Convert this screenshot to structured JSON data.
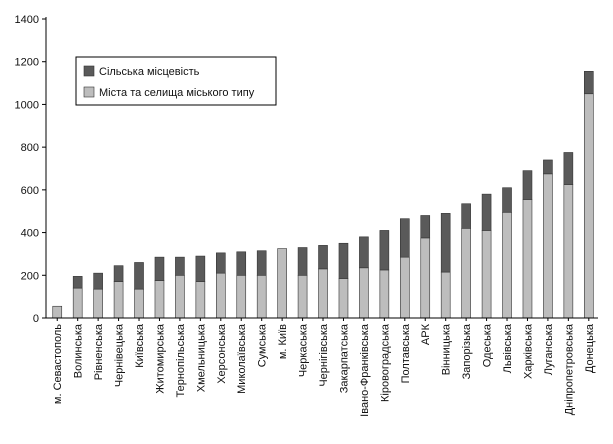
{
  "chart_data": {
    "type": "bar",
    "stacked": true,
    "title": "",
    "xlabel": "",
    "ylabel": "",
    "ylim": [
      0,
      1400
    ],
    "yticks": [
      0,
      200,
      400,
      600,
      800,
      1000,
      1200,
      1400
    ],
    "grid": false,
    "legend_position": "top-left",
    "categories": [
      "м. Севастополь",
      "Волинська",
      "Рівненська",
      "Чернівецька",
      "Київська",
      "Житомирська",
      "Тернопільська",
      "Хмельницька",
      "Херсонська",
      "Миколаївська",
      "Сумська",
      "м. Київ",
      "Черкаська",
      "Чернігівська",
      "Закарпатська",
      "Івано-Франківська",
      "Кіровоградська",
      "Полтавська",
      "АРК",
      "Вінницька",
      "Запорізька",
      "Одеська",
      "Львівська",
      "Харківська",
      "Луганська",
      "Дніпропетровська",
      "Донецька"
    ],
    "series": [
      {
        "name": "Міста та селища міського типу",
        "color": "#bdbdbd",
        "values": [
          55,
          140,
          135,
          170,
          135,
          175,
          200,
          170,
          210,
          200,
          200,
          325,
          200,
          230,
          185,
          235,
          225,
          285,
          375,
          215,
          420,
          410,
          495,
          555,
          675,
          625,
          1050
        ]
      },
      {
        "name": "Сільська місцевість",
        "color": "#5a5a5a",
        "values": [
          0,
          55,
          75,
          75,
          125,
          110,
          85,
          120,
          95,
          110,
          115,
          0,
          130,
          110,
          165,
          145,
          185,
          180,
          105,
          275,
          115,
          170,
          115,
          135,
          65,
          150,
          105
        ]
      }
    ],
    "legend_entries": [
      "Сільська місцевість",
      "Міста та селища міського типу"
    ]
  }
}
